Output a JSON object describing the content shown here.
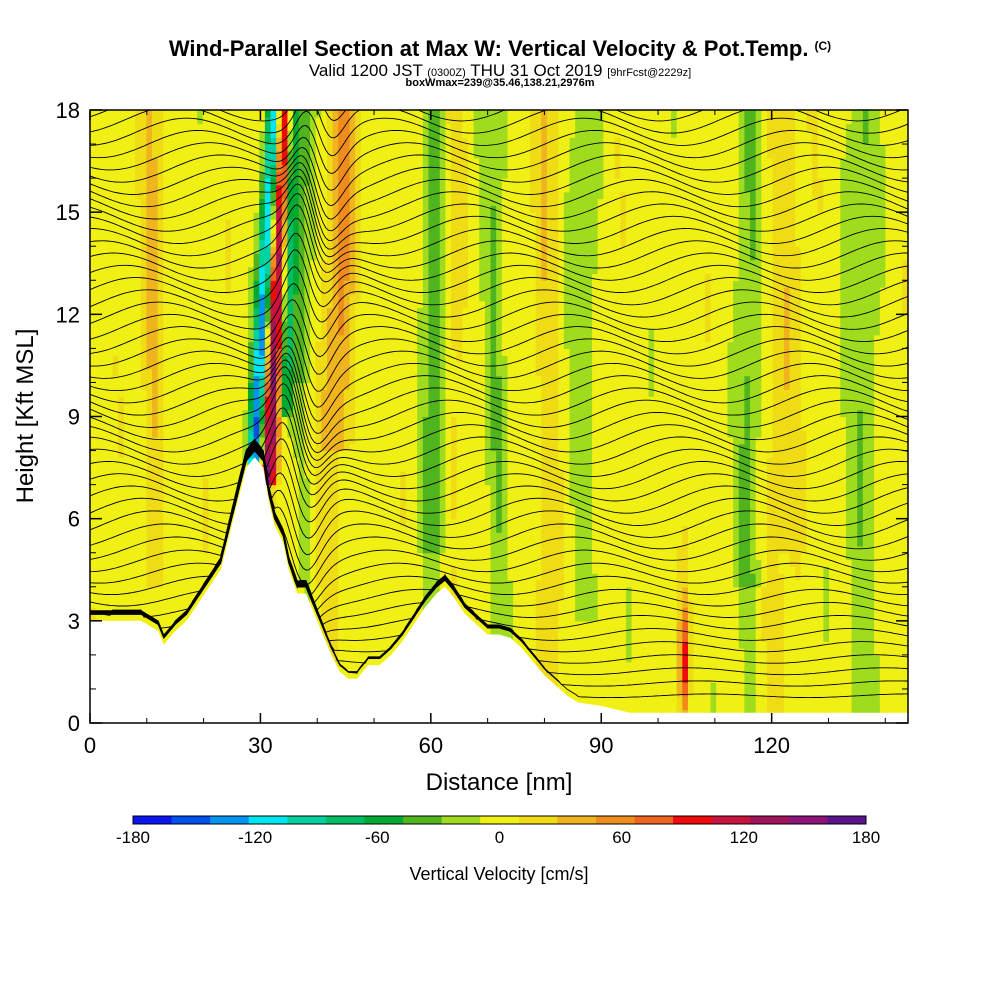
{
  "title": {
    "main": "Wind-Parallel Section at Max W: Vertical Velocity & Pot.Temp.",
    "main_tag": "(C)",
    "valid_prefix": "Valid 1200 JST",
    "valid_utc": "(0300Z)",
    "valid_date": "THU 31 Oct 2019",
    "forecast": "[9hrFcst@2229z]",
    "box_info": "boxWmax=239@35.46,138.21,2976m"
  },
  "chart_data": {
    "type": "heatmap",
    "xlabel": "Distance [nm]",
    "ylabel": "Height [Kft MSL]",
    "xlim": [
      0,
      144
    ],
    "ylim": [
      0,
      18
    ],
    "x_ticks": [
      0,
      30,
      60,
      90,
      120
    ],
    "y_ticks": [
      0,
      3,
      6,
      9,
      12,
      15,
      18
    ],
    "colorbar": {
      "label": "Vertical Velocity [cm/s]",
      "range": [
        -180,
        180
      ],
      "ticks": [
        -180,
        -120,
        -60,
        0,
        60,
        120,
        180
      ],
      "colors": [
        "#0a14f0",
        "#0050f0",
        "#0096f0",
        "#00e6f0",
        "#00d2a0",
        "#00be64",
        "#00aa32",
        "#50b41e",
        "#a0dc1e",
        "#f0f014",
        "#f0dc14",
        "#f0b41e",
        "#f08c1e",
        "#f0641e",
        "#f00a0a",
        "#c8143c",
        "#a0145a",
        "#8c1478",
        "#5a148c"
      ]
    },
    "terrain": [
      [
        0,
        3.0
      ],
      [
        3,
        3.0
      ],
      [
        6,
        3.0
      ],
      [
        9,
        3.0
      ],
      [
        12,
        2.7
      ],
      [
        13,
        2.3
      ],
      [
        15,
        2.7
      ],
      [
        17,
        3.0
      ],
      [
        19,
        3.5
      ],
      [
        21,
        4.0
      ],
      [
        23,
        4.5
      ],
      [
        24.5,
        5.5
      ],
      [
        26,
        6.5
      ],
      [
        27.5,
        7.5
      ],
      [
        29,
        7.8
      ],
      [
        30.5,
        7.5
      ],
      [
        31.5,
        6.5
      ],
      [
        32.5,
        5.8
      ],
      [
        34,
        5.3
      ],
      [
        35,
        4.5
      ],
      [
        36.5,
        3.8
      ],
      [
        38,
        3.8
      ],
      [
        39.5,
        3.2
      ],
      [
        41,
        2.6
      ],
      [
        42.5,
        2.0
      ],
      [
        44,
        1.5
      ],
      [
        45.5,
        1.3
      ],
      [
        47,
        1.3
      ],
      [
        49,
        1.7
      ],
      [
        51,
        1.7
      ],
      [
        53,
        2.0
      ],
      [
        55,
        2.4
      ],
      [
        57,
        2.9
      ],
      [
        59,
        3.4
      ],
      [
        61,
        3.8
      ],
      [
        62.5,
        4.0
      ],
      [
        64,
        3.7
      ],
      [
        66,
        3.2
      ],
      [
        68,
        2.9
      ],
      [
        70,
        2.6
      ],
      [
        72,
        2.6
      ],
      [
        74,
        2.5
      ],
      [
        76,
        2.2
      ],
      [
        78,
        1.8
      ],
      [
        80,
        1.4
      ],
      [
        82,
        1.1
      ],
      [
        84,
        0.8
      ],
      [
        86,
        0.6
      ],
      [
        88,
        0.55
      ],
      [
        90,
        0.5
      ],
      [
        95,
        0.3
      ],
      [
        100,
        0.3
      ],
      [
        110,
        0.3
      ],
      [
        120,
        0.3
      ],
      [
        130,
        0.3
      ],
      [
        144,
        0.3
      ]
    ],
    "theta_levels_c": [
      20,
      21,
      22,
      23,
      24,
      25,
      26,
      27,
      28,
      29,
      30,
      31,
      32,
      33,
      34,
      35,
      36,
      37,
      38,
      39,
      40,
      41,
      42,
      43,
      44,
      45,
      46,
      47,
      48,
      49,
      50,
      51,
      52,
      53,
      54,
      55,
      56,
      57,
      58,
      59,
      60,
      61,
      62,
      63,
      64,
      65,
      66,
      67,
      68,
      69
    ]
  }
}
